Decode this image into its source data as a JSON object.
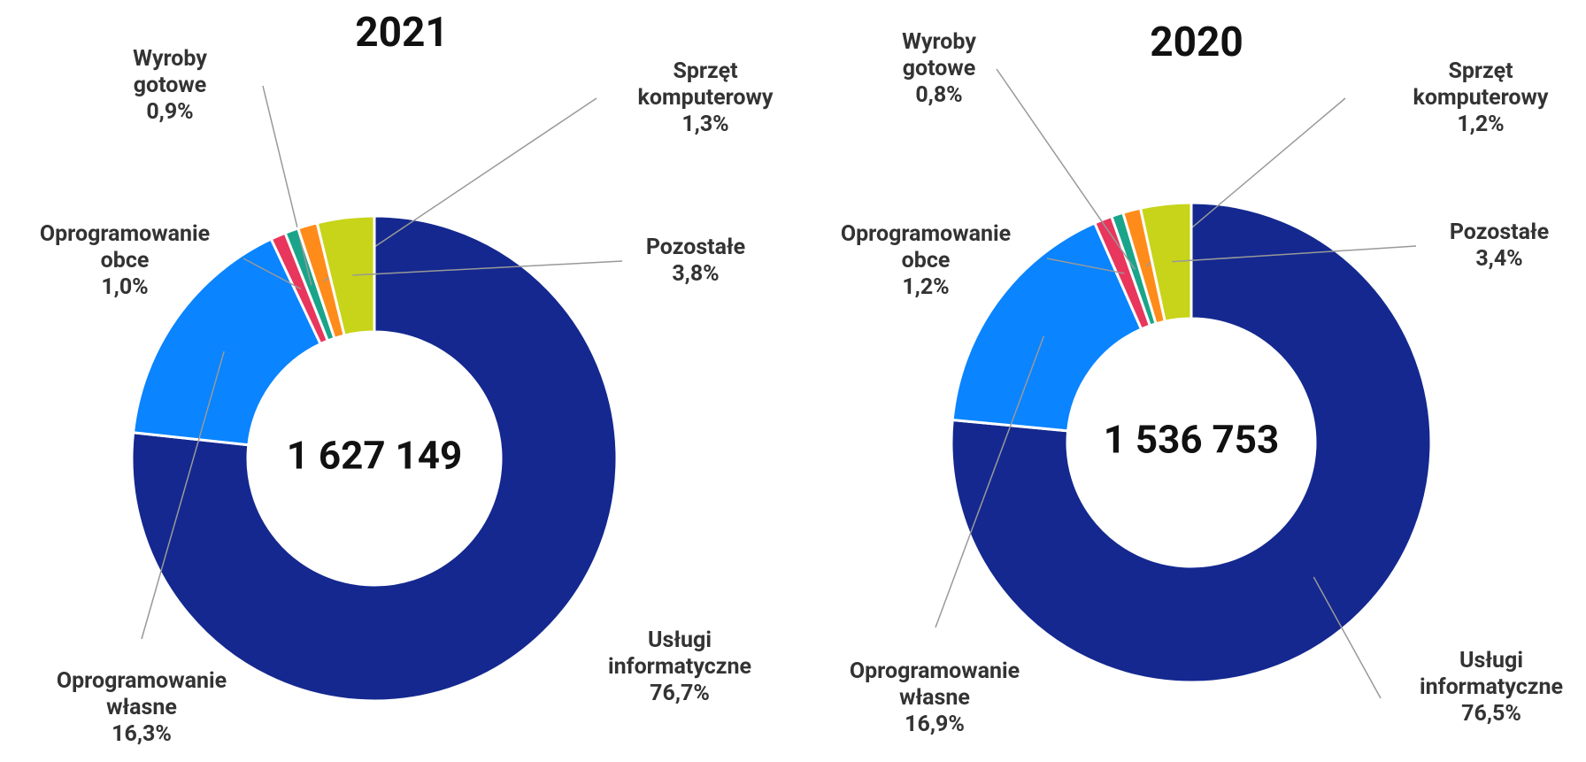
{
  "chart_data": [
    {
      "type": "donut",
      "title": "2021",
      "center_label": "1 627 149",
      "categories": [
        "Usługi informatyczne",
        "Oprogramowanie własne",
        "Oprogramowanie obce",
        "Wyroby gotowe",
        "Sprzęt komputerowy",
        "Pozostałe"
      ],
      "values": [
        76.7,
        16.3,
        1.0,
        0.9,
        1.3,
        3.8
      ],
      "value_labels": [
        "76,7%",
        "16,3%",
        "1,0%",
        "0,9%",
        "1,3%",
        "3,8%"
      ],
      "colors": [
        "#14288f",
        "#0a84ff",
        "#e8365d",
        "#1aa58a",
        "#ff8c1a",
        "#c8d419"
      ]
    },
    {
      "type": "donut",
      "title": "2020",
      "center_label": "1 536 753",
      "categories": [
        "Usługi informatyczne",
        "Oprogramowanie własne",
        "Oprogramowanie obce",
        "Wyroby gotowe",
        "Sprzęt komputerowy",
        "Pozostałe"
      ],
      "values": [
        76.5,
        16.9,
        1.2,
        0.8,
        1.2,
        3.4
      ],
      "value_labels": [
        "76,5%",
        "16,9%",
        "1,2%",
        "0,8%",
        "1,2%",
        "3,4%"
      ],
      "colors": [
        "#14288f",
        "#0a84ff",
        "#e8365d",
        "#1aa58a",
        "#ff8c1a",
        "#c8d419"
      ]
    }
  ]
}
